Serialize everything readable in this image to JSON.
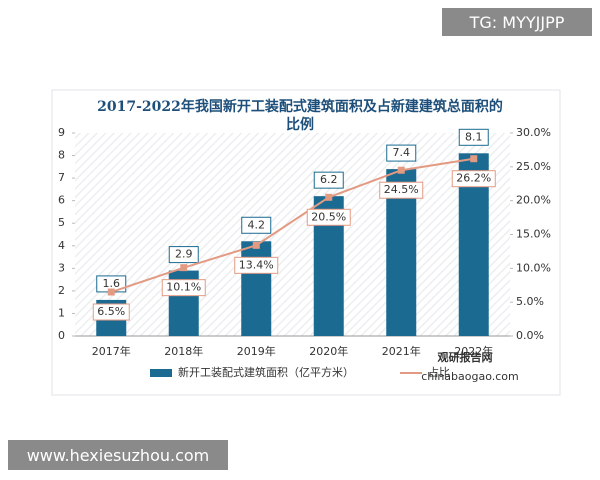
{
  "watermarks": {
    "top_right": "TG: MYYJJPP",
    "bottom_left": "www.hexiesuzhou.com"
  },
  "source_logo": {
    "name": "观研报告网",
    "url": "chinabaogao.com"
  },
  "chart_data": {
    "type": "bar",
    "title": "2017-2022年我国新开工装配式建筑面积及占新建建筑总面积的比例",
    "categories": [
      "2017年",
      "2018年",
      "2019年",
      "2020年",
      "2021年",
      "2022年"
    ],
    "series": [
      {
        "name": "新开工装配式建筑面积（亿平方米）",
        "type": "bar",
        "color": "#1b6a91",
        "values": [
          1.6,
          2.9,
          4.2,
          6.2,
          7.4,
          8.1
        ]
      },
      {
        "name": "占比",
        "type": "line",
        "axis": "y2",
        "color": "#e39a83",
        "values": [
          6.5,
          10.1,
          13.4,
          20.5,
          24.5,
          26.2
        ],
        "value_labels": [
          "6.5%",
          "10.1%",
          "13.4%",
          "20.5%",
          "24.5%",
          "26.2%"
        ]
      }
    ],
    "ylim": [
      0,
      9
    ],
    "yticks": [
      0,
      1,
      2,
      3,
      4,
      5,
      6,
      7,
      8,
      9
    ],
    "y2lim": [
      0,
      30
    ],
    "y2ticks": [
      {
        "value": 0,
        "label": "0.0%"
      },
      {
        "value": 5,
        "label": "5.0%"
      },
      {
        "value": 10,
        "label": "10.0%"
      },
      {
        "value": 15,
        "label": "15.0%"
      },
      {
        "value": 20,
        "label": "20.0%"
      },
      {
        "value": 25,
        "label": "25.0%"
      },
      {
        "value": 30,
        "label": "30.0%"
      }
    ],
    "legend": "bottom"
  }
}
